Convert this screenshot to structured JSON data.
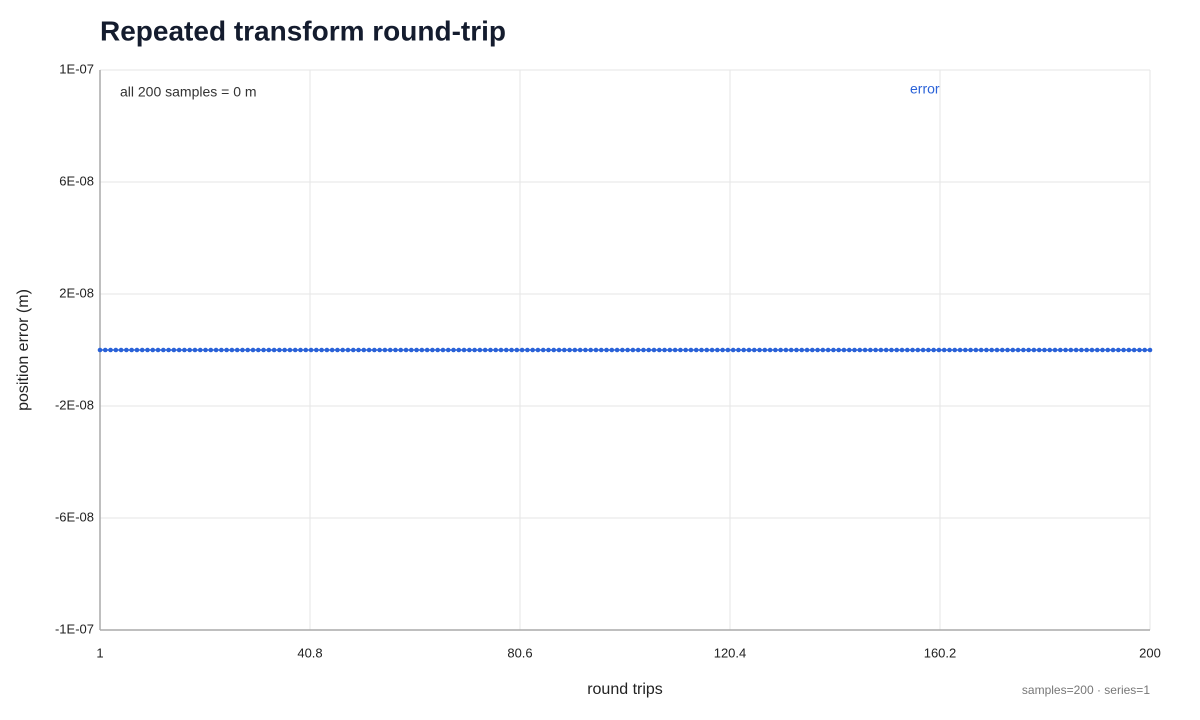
{
  "chart_data": {
    "type": "line",
    "title": "Repeated transform round-trip",
    "xlabel": "round trips",
    "ylabel": "position error (m)",
    "annotation": "all 200 samples = 0 m",
    "footer": "samples=200 · series=1",
    "grid": true,
    "legend": "top-right",
    "x": [
      1,
      2,
      3,
      4,
      5,
      6,
      7,
      8,
      9,
      10,
      11,
      12,
      13,
      14,
      15,
      16,
      17,
      18,
      19,
      20,
      21,
      22,
      23,
      24,
      25,
      26,
      27,
      28,
      29,
      30,
      31,
      32,
      33,
      34,
      35,
      36,
      37,
      38,
      39,
      40,
      41,
      42,
      43,
      44,
      45,
      46,
      47,
      48,
      49,
      50,
      51,
      52,
      53,
      54,
      55,
      56,
      57,
      58,
      59,
      60,
      61,
      62,
      63,
      64,
      65,
      66,
      67,
      68,
      69,
      70,
      71,
      72,
      73,
      74,
      75,
      76,
      77,
      78,
      79,
      80,
      81,
      82,
      83,
      84,
      85,
      86,
      87,
      88,
      89,
      90,
      91,
      92,
      93,
      94,
      95,
      96,
      97,
      98,
      99,
      100,
      101,
      102,
      103,
      104,
      105,
      106,
      107,
      108,
      109,
      110,
      111,
      112,
      113,
      114,
      115,
      116,
      117,
      118,
      119,
      120,
      121,
      122,
      123,
      124,
      125,
      126,
      127,
      128,
      129,
      130,
      131,
      132,
      133,
      134,
      135,
      136,
      137,
      138,
      139,
      140,
      141,
      142,
      143,
      144,
      145,
      146,
      147,
      148,
      149,
      150,
      151,
      152,
      153,
      154,
      155,
      156,
      157,
      158,
      159,
      160,
      161,
      162,
      163,
      164,
      165,
      166,
      167,
      168,
      169,
      170,
      171,
      172,
      173,
      174,
      175,
      176,
      177,
      178,
      179,
      180,
      181,
      182,
      183,
      184,
      185,
      186,
      187,
      188,
      189,
      190,
      191,
      192,
      193,
      194,
      195,
      196,
      197,
      198,
      199,
      200
    ],
    "series": [
      {
        "name": "error",
        "color": "#2a62d8",
        "values": [
          0,
          0,
          0,
          0,
          0,
          0,
          0,
          0,
          0,
          0,
          0,
          0,
          0,
          0,
          0,
          0,
          0,
          0,
          0,
          0,
          0,
          0,
          0,
          0,
          0,
          0,
          0,
          0,
          0,
          0,
          0,
          0,
          0,
          0,
          0,
          0,
          0,
          0,
          0,
          0,
          0,
          0,
          0,
          0,
          0,
          0,
          0,
          0,
          0,
          0,
          0,
          0,
          0,
          0,
          0,
          0,
          0,
          0,
          0,
          0,
          0,
          0,
          0,
          0,
          0,
          0,
          0,
          0,
          0,
          0,
          0,
          0,
          0,
          0,
          0,
          0,
          0,
          0,
          0,
          0,
          0,
          0,
          0,
          0,
          0,
          0,
          0,
          0,
          0,
          0,
          0,
          0,
          0,
          0,
          0,
          0,
          0,
          0,
          0,
          0,
          0,
          0,
          0,
          0,
          0,
          0,
          0,
          0,
          0,
          0,
          0,
          0,
          0,
          0,
          0,
          0,
          0,
          0,
          0,
          0,
          0,
          0,
          0,
          0,
          0,
          0,
          0,
          0,
          0,
          0,
          0,
          0,
          0,
          0,
          0,
          0,
          0,
          0,
          0,
          0,
          0,
          0,
          0,
          0,
          0,
          0,
          0,
          0,
          0,
          0,
          0,
          0,
          0,
          0,
          0,
          0,
          0,
          0,
          0,
          0,
          0,
          0,
          0,
          0,
          0,
          0,
          0,
          0,
          0,
          0,
          0,
          0,
          0,
          0,
          0,
          0,
          0,
          0,
          0,
          0,
          0,
          0,
          0,
          0,
          0,
          0,
          0,
          0,
          0,
          0,
          0,
          0,
          0,
          0,
          0,
          0,
          0,
          0,
          0,
          0
        ]
      }
    ],
    "xlim": [
      1,
      200
    ],
    "xticks": [
      1,
      40.8,
      80.6,
      120.4,
      160.2,
      200
    ],
    "ylim": [
      -1e-07,
      1e-07
    ],
    "yticks": [
      {
        "value": -1e-07,
        "label": "-1E-07"
      },
      {
        "value": -6e-08,
        "label": "-6E-08"
      },
      {
        "value": -2e-08,
        "label": "-2E-08"
      },
      {
        "value": 2e-08,
        "label": "2E-08"
      },
      {
        "value": 6e-08,
        "label": "6E-08"
      },
      {
        "value": 1e-07,
        "label": "1E-07"
      }
    ]
  }
}
